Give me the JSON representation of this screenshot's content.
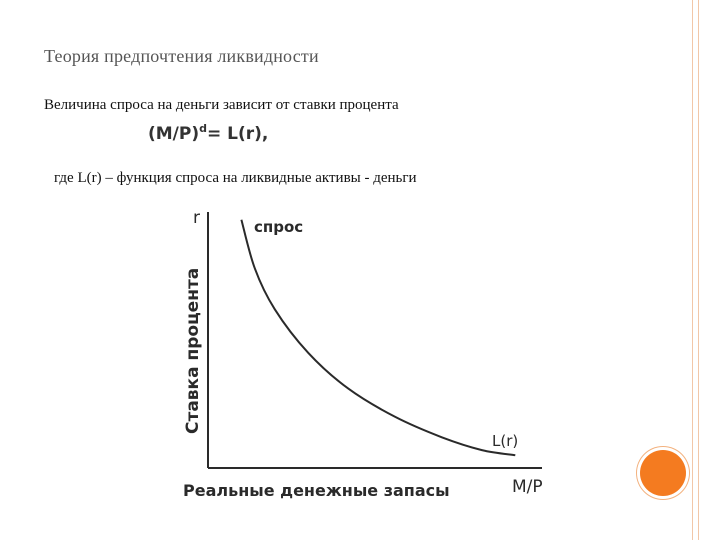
{
  "slide": {
    "title": "Теория предпочтения ликвидности",
    "intro": "Величина спроса на деньги зависит от ставки процента",
    "formula": {
      "lhs": "(M/P)",
      "sup": "d",
      "rhs": "= L(r),"
    },
    "where": "где L(r) – функция спроса на ликвидные активы - деньги"
  },
  "chart_data": {
    "type": "line",
    "axis_y_label": "r",
    "axis_y_title": "Ставка процента",
    "axis_x_label": "M/P",
    "axis_x_title": "Реальные денежные запасы",
    "curve_top_label": "спрос",
    "curve_end_label": "L(r)",
    "series": [
      {
        "name": "L(r)",
        "x": [
          0.1,
          0.14,
          0.2,
          0.3,
          0.42,
          0.56,
          0.7,
          0.82,
          0.92
        ],
        "y": [
          0.97,
          0.78,
          0.62,
          0.45,
          0.31,
          0.2,
          0.12,
          0.07,
          0.05
        ]
      }
    ],
    "xlim": [
      0,
      1
    ],
    "ylim": [
      0,
      1
    ],
    "grid": false
  },
  "colors": {
    "frame": "#f2c7a8",
    "accent": "#f47b20",
    "ink": "#2a2a2a"
  }
}
